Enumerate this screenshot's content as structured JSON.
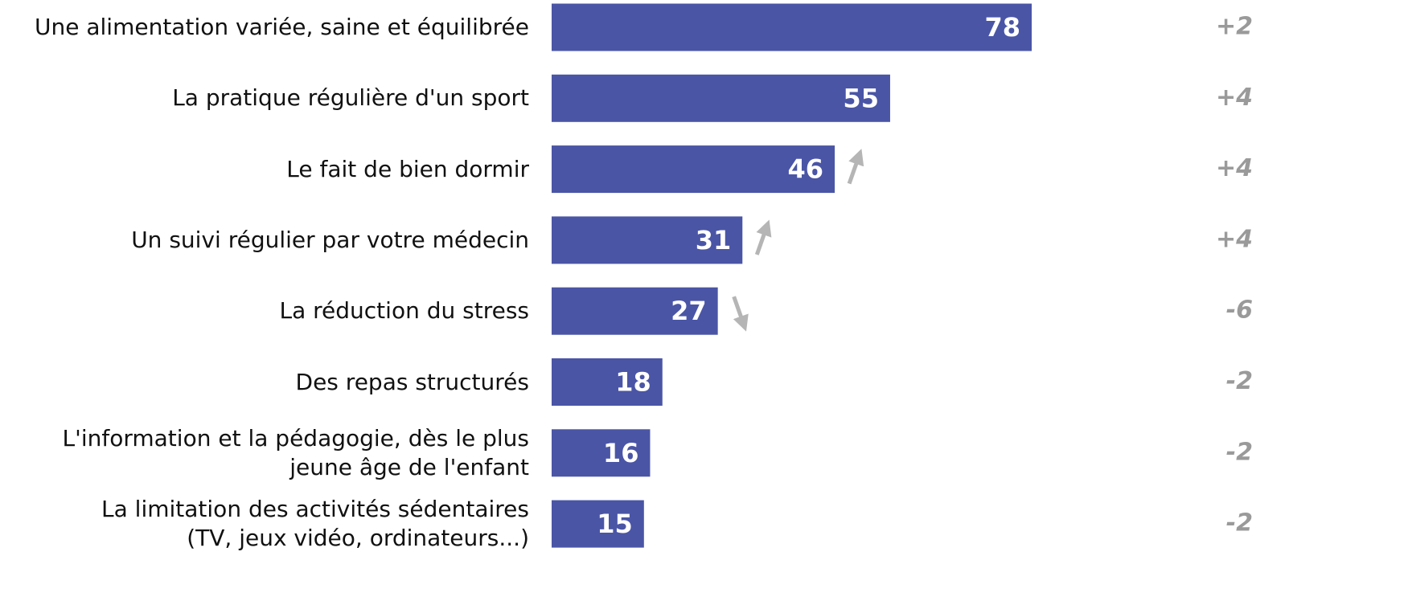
{
  "chart_data": {
    "type": "bar",
    "categories": [
      "Une alimentation variée, saine et équilibrée",
      "La pratique régulière d'un sport",
      "Le fait de bien dormir",
      "Un suivi régulier par votre médecin",
      "La réduction du stress",
      "Des repas structurés",
      "L'information et la pédagogie, dès le plus\njeune âge de l'enfant",
      "La limitation des activités sédentaires\n(TV, jeux vidéo, ordinateurs...)"
    ],
    "values": [
      78,
      55,
      46,
      31,
      27,
      18,
      16,
      15
    ],
    "color": "#4a55a6",
    "changes": [
      2,
      4,
      4,
      4,
      -6,
      -2,
      -2,
      -2
    ],
    "change_labels": [
      "+2",
      "+4",
      "+4",
      "+4",
      "-6",
      "-2",
      "-2",
      "-2"
    ],
    "arrows": [
      null,
      null,
      "up",
      "up",
      "down",
      null,
      null,
      null
    ]
  }
}
